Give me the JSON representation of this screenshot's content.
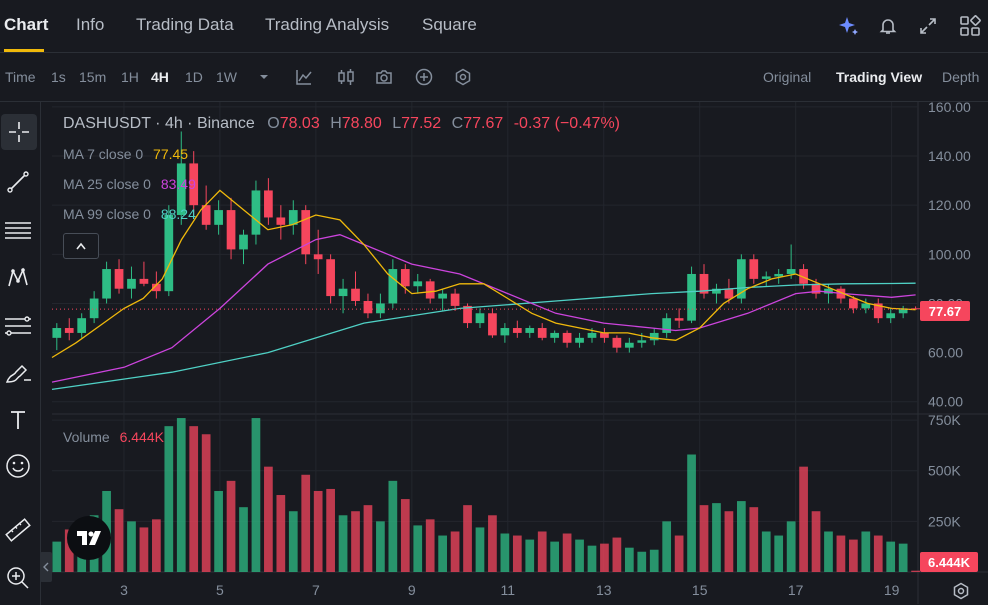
{
  "nav": {
    "tabs": [
      "Chart",
      "Info",
      "Trading Data",
      "Trading Analysis",
      "Square"
    ],
    "active": "Chart",
    "icons": [
      "ai-sparkle-icon",
      "bell-icon",
      "expand-icon",
      "grid-icon"
    ]
  },
  "toolbar": {
    "intervals": [
      "Time",
      "1s",
      "15m",
      "1H",
      "4H",
      "1D",
      "1W"
    ],
    "active_interval": "4H",
    "dropdown_icon": "chevron-down-icon",
    "tool_icons": [
      "indicator-icon",
      "candle-type-icon",
      "camera-icon",
      "add-circle-icon",
      "settings-hex-icon"
    ],
    "views": [
      "Original",
      "Trading View",
      "Depth"
    ],
    "active_view": "Trading View"
  },
  "legend": {
    "symbol": "DASHUSDT · 4h · Binance",
    "o_label": "O",
    "o": "78.03",
    "h_label": "H",
    "h": "78.80",
    "l_label": "L",
    "l": "77.52",
    "c_label": "C",
    "c": "77.67",
    "change": "-0.37 (−0.47%)",
    "ma7_label": "MA 7 close 0",
    "ma7": "77.45",
    "ma25_label": "MA 25 close 0",
    "ma25": "83.49",
    "ma99_label": "MA 99 close 0",
    "ma99": "88.24",
    "volume_label": "Volume",
    "volume": "6.444K"
  },
  "price_badge": "77.67",
  "volume_badge": "6.444K",
  "colors": {
    "up": "#2ebd85",
    "down": "#f6465d",
    "ma7": "#f0b90b",
    "ma25": "#cc44dd",
    "ma99": "#4fd1c5",
    "bg": "#181a20"
  },
  "chart_data": {
    "type": "candlestick",
    "symbol": "DASHUSDT",
    "interval": "4h",
    "price_axis": {
      "ticks": [
        "160.00",
        "140.00",
        "120.00",
        "100.00",
        "80.00",
        "60.00",
        "40.00"
      ],
      "ylim": [
        35,
        162
      ]
    },
    "volume_axis": {
      "ticks": [
        "750K",
        "500K",
        "250K"
      ],
      "ylim": [
        0,
        780000
      ]
    },
    "x_ticks": [
      "3",
      "5",
      "7",
      "9",
      "11",
      "13",
      "15",
      "17",
      "19"
    ],
    "x_tick_days": [
      3,
      5,
      7,
      9,
      11,
      13,
      15,
      17,
      19
    ],
    "x_range_days": [
      1.5,
      19.55
    ],
    "last_price": 77.67,
    "candles": [
      {
        "o": 66,
        "h": 72,
        "l": 61,
        "c": 70,
        "v": 150000
      },
      {
        "o": 70,
        "h": 74,
        "l": 65,
        "c": 68,
        "v": 210000
      },
      {
        "o": 68,
        "h": 76,
        "l": 66,
        "c": 74,
        "v": 190000
      },
      {
        "o": 74,
        "h": 85,
        "l": 72,
        "c": 82,
        "v": 280000
      },
      {
        "o": 82,
        "h": 97,
        "l": 80,
        "c": 94,
        "v": 400000
      },
      {
        "o": 94,
        "h": 98,
        "l": 84,
        "c": 86,
        "v": 310000
      },
      {
        "o": 86,
        "h": 95,
        "l": 82,
        "c": 90,
        "v": 250000
      },
      {
        "o": 90,
        "h": 97,
        "l": 87,
        "c": 88,
        "v": 220000
      },
      {
        "o": 88,
        "h": 93,
        "l": 82,
        "c": 85,
        "v": 260000
      },
      {
        "o": 85,
        "h": 120,
        "l": 83,
        "c": 116,
        "v": 720000
      },
      {
        "o": 116,
        "h": 150,
        "l": 112,
        "c": 137,
        "v": 760000
      },
      {
        "o": 137,
        "h": 142,
        "l": 115,
        "c": 120,
        "v": 720000
      },
      {
        "o": 120,
        "h": 128,
        "l": 110,
        "c": 112,
        "v": 680000
      },
      {
        "o": 112,
        "h": 122,
        "l": 108,
        "c": 118,
        "v": 400000
      },
      {
        "o": 118,
        "h": 123,
        "l": 98,
        "c": 102,
        "v": 450000
      },
      {
        "o": 102,
        "h": 110,
        "l": 96,
        "c": 108,
        "v": 320000
      },
      {
        "o": 108,
        "h": 130,
        "l": 104,
        "c": 126,
        "v": 760000
      },
      {
        "o": 126,
        "h": 131,
        "l": 112,
        "c": 115,
        "v": 520000
      },
      {
        "o": 115,
        "h": 120,
        "l": 106,
        "c": 112,
        "v": 380000
      },
      {
        "o": 112,
        "h": 122,
        "l": 108,
        "c": 118,
        "v": 300000
      },
      {
        "o": 118,
        "h": 120,
        "l": 96,
        "c": 100,
        "v": 480000
      },
      {
        "o": 100,
        "h": 110,
        "l": 92,
        "c": 98,
        "v": 400000
      },
      {
        "o": 98,
        "h": 100,
        "l": 80,
        "c": 83,
        "v": 410000
      },
      {
        "o": 83,
        "h": 90,
        "l": 76,
        "c": 86,
        "v": 280000
      },
      {
        "o": 86,
        "h": 93,
        "l": 79,
        "c": 81,
        "v": 300000
      },
      {
        "o": 81,
        "h": 84,
        "l": 74,
        "c": 76,
        "v": 330000
      },
      {
        "o": 76,
        "h": 84,
        "l": 74,
        "c": 80,
        "v": 250000
      },
      {
        "o": 80,
        "h": 98,
        "l": 78,
        "c": 94,
        "v": 450000
      },
      {
        "o": 94,
        "h": 96,
        "l": 84,
        "c": 87,
        "v": 360000
      },
      {
        "o": 87,
        "h": 92,
        "l": 84,
        "c": 89,
        "v": 230000
      },
      {
        "o": 89,
        "h": 90,
        "l": 80,
        "c": 82,
        "v": 260000
      },
      {
        "o": 82,
        "h": 86,
        "l": 77,
        "c": 84,
        "v": 180000
      },
      {
        "o": 84,
        "h": 86,
        "l": 77,
        "c": 79,
        "v": 200000
      },
      {
        "o": 79,
        "h": 80,
        "l": 70,
        "c": 72,
        "v": 330000
      },
      {
        "o": 72,
        "h": 78,
        "l": 70,
        "c": 76,
        "v": 220000
      },
      {
        "o": 76,
        "h": 78,
        "l": 66,
        "c": 67,
        "v": 280000
      },
      {
        "o": 67,
        "h": 72,
        "l": 64,
        "c": 70,
        "v": 190000
      },
      {
        "o": 70,
        "h": 73,
        "l": 66,
        "c": 68,
        "v": 180000
      },
      {
        "o": 68,
        "h": 71,
        "l": 66,
        "c": 70,
        "v": 160000
      },
      {
        "o": 70,
        "h": 72,
        "l": 65,
        "c": 66,
        "v": 200000
      },
      {
        "o": 66,
        "h": 69,
        "l": 64,
        "c": 68,
        "v": 150000
      },
      {
        "o": 68,
        "h": 69,
        "l": 62,
        "c": 64,
        "v": 190000
      },
      {
        "o": 64,
        "h": 68,
        "l": 62,
        "c": 66,
        "v": 160000
      },
      {
        "o": 66,
        "h": 70,
        "l": 64,
        "c": 68,
        "v": 130000
      },
      {
        "o": 68,
        "h": 70,
        "l": 64,
        "c": 66,
        "v": 140000
      },
      {
        "o": 66,
        "h": 67,
        "l": 60,
        "c": 62,
        "v": 170000
      },
      {
        "o": 62,
        "h": 66,
        "l": 60,
        "c": 64,
        "v": 120000
      },
      {
        "o": 64,
        "h": 68,
        "l": 62,
        "c": 65,
        "v": 100000
      },
      {
        "o": 65,
        "h": 70,
        "l": 63,
        "c": 68,
        "v": 110000
      },
      {
        "o": 68,
        "h": 76,
        "l": 66,
        "c": 74,
        "v": 250000
      },
      {
        "o": 74,
        "h": 78,
        "l": 70,
        "c": 73,
        "v": 180000
      },
      {
        "o": 73,
        "h": 95,
        "l": 72,
        "c": 92,
        "v": 580000
      },
      {
        "o": 92,
        "h": 96,
        "l": 82,
        "c": 84,
        "v": 330000
      },
      {
        "o": 84,
        "h": 88,
        "l": 80,
        "c": 86,
        "v": 340000
      },
      {
        "o": 86,
        "h": 90,
        "l": 80,
        "c": 82,
        "v": 300000
      },
      {
        "o": 82,
        "h": 100,
        "l": 80,
        "c": 98,
        "v": 350000
      },
      {
        "o": 98,
        "h": 100,
        "l": 88,
        "c": 90,
        "v": 320000
      },
      {
        "o": 90,
        "h": 93,
        "l": 87,
        "c": 91,
        "v": 200000
      },
      {
        "o": 91,
        "h": 94,
        "l": 88,
        "c": 92,
        "v": 180000
      },
      {
        "o": 92,
        "h": 104,
        "l": 90,
        "c": 94,
        "v": 250000
      },
      {
        "o": 94,
        "h": 96,
        "l": 86,
        "c": 88,
        "v": 520000
      },
      {
        "o": 88,
        "h": 90,
        "l": 82,
        "c": 84,
        "v": 300000
      },
      {
        "o": 84,
        "h": 88,
        "l": 80,
        "c": 86,
        "v": 200000
      },
      {
        "o": 86,
        "h": 87,
        "l": 80,
        "c": 82,
        "v": 180000
      },
      {
        "o": 82,
        "h": 83,
        "l": 76,
        "c": 78,
        "v": 160000
      },
      {
        "o": 78,
        "h": 82,
        "l": 76,
        "c": 80,
        "v": 200000
      },
      {
        "o": 80,
        "h": 82,
        "l": 72,
        "c": 74,
        "v": 180000
      },
      {
        "o": 74,
        "h": 78,
        "l": 72,
        "c": 76,
        "v": 150000
      },
      {
        "o": 76,
        "h": 79,
        "l": 74,
        "c": 78,
        "v": 140000
      },
      {
        "o": 78.03,
        "h": 78.8,
        "l": 77.52,
        "c": 77.67,
        "v": 6444
      }
    ],
    "ma7": [
      [
        1.5,
        58
      ],
      [
        2,
        64
      ],
      [
        2.5,
        71
      ],
      [
        3,
        78
      ],
      [
        3.4,
        82
      ],
      [
        3.8,
        90
      ],
      [
        4.2,
        106
      ],
      [
        4.6,
        118
      ],
      [
        5,
        126
      ],
      [
        5.5,
        118
      ],
      [
        6,
        110
      ],
      [
        6.5,
        112
      ],
      [
        7,
        116
      ],
      [
        7.5,
        114
      ],
      [
        8,
        104
      ],
      [
        8.5,
        92
      ],
      [
        9,
        84
      ],
      [
        9.5,
        85
      ],
      [
        10,
        88
      ],
      [
        10.5,
        88
      ],
      [
        11,
        82
      ],
      [
        11.5,
        76
      ],
      [
        12,
        72
      ],
      [
        12.5,
        70
      ],
      [
        13,
        68
      ],
      [
        13.5,
        68
      ],
      [
        14,
        66
      ],
      [
        14.5,
        65
      ],
      [
        15,
        70
      ],
      [
        15.5,
        80
      ],
      [
        16,
        86
      ],
      [
        16.5,
        90
      ],
      [
        17,
        92
      ],
      [
        17.5,
        88
      ],
      [
        18,
        84
      ],
      [
        18.5,
        80
      ],
      [
        19,
        78
      ],
      [
        19.5,
        77.45
      ]
    ],
    "ma25": [
      [
        1.5,
        48
      ],
      [
        3,
        54
      ],
      [
        4,
        62
      ],
      [
        5,
        78
      ],
      [
        6,
        96
      ],
      [
        7,
        106
      ],
      [
        7.5,
        108
      ],
      [
        8,
        104
      ],
      [
        8.5,
        100
      ],
      [
        9,
        96
      ],
      [
        10,
        92
      ],
      [
        11,
        84
      ],
      [
        12,
        76
      ],
      [
        13,
        72
      ],
      [
        14,
        70
      ],
      [
        14.5,
        69
      ],
      [
        15,
        70
      ],
      [
        16,
        76
      ],
      [
        17,
        84
      ],
      [
        17.5,
        85
      ],
      [
        18,
        84
      ],
      [
        19,
        82.5
      ],
      [
        19.5,
        83.49
      ]
    ],
    "ma99": [
      [
        1.5,
        45
      ],
      [
        4,
        52
      ],
      [
        6,
        60
      ],
      [
        8,
        72
      ],
      [
        10,
        78
      ],
      [
        12,
        81
      ],
      [
        14,
        84
      ],
      [
        15,
        85
      ],
      [
        16,
        86.5
      ],
      [
        17,
        87.5
      ],
      [
        18,
        88
      ],
      [
        19,
        88.1
      ],
      [
        19.5,
        88.24
      ]
    ]
  }
}
